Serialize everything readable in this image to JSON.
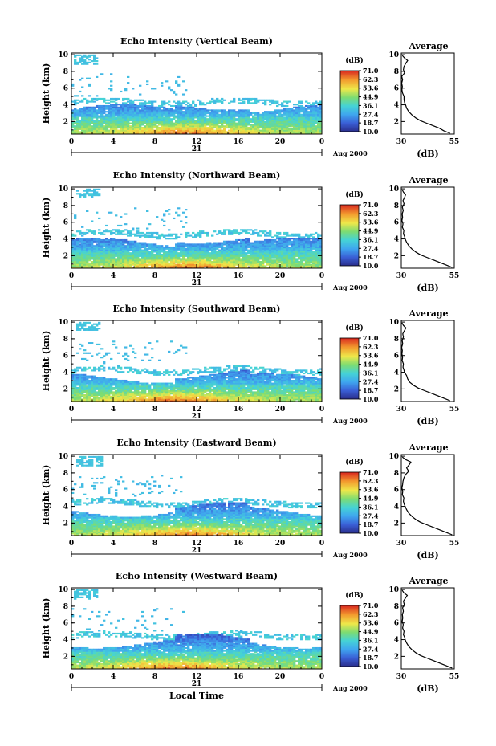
{
  "chart_data": [
    {
      "type": "heatmap",
      "title": "Echo Intensity (Vertical Beam)",
      "ylabel": "Height (km)",
      "x_ticks": [
        "0",
        "4",
        "8",
        "12",
        "16",
        "20",
        "0"
      ],
      "xlim": [
        0,
        24
      ],
      "y_ticks": [
        "2",
        "4",
        "6",
        "8",
        "10"
      ],
      "ylim": [
        0.5,
        10.2
      ],
      "date_day": "21",
      "date_label": "Aug 2000",
      "colorbar": {
        "unit": "(dB)",
        "ticks": [
          "71.0",
          "62.3",
          "53.6",
          "44.9",
          "36.1",
          "27.4",
          "18.7",
          "10.0"
        ]
      },
      "field": {
        "base_top_km": 3.5,
        "upper_band_km": 4.3,
        "peak_hour": 11,
        "upper_cloud": [
          0.3,
          2.5,
          8.8,
          10.0
        ]
      },
      "profile": {
        "title": "Average",
        "xlabel": "(dB)",
        "x_ticks": [
          "30",
          "55"
        ],
        "xlim": [
          30,
          55
        ],
        "y_ticks": [
          "2",
          "4",
          "6",
          "8",
          "10"
        ],
        "ylim": [
          0.5,
          10.2
        ],
        "heights": [
          0.6,
          0.9,
          1.2,
          1.5,
          1.8,
          2.1,
          2.4,
          2.8,
          3.2,
          3.6,
          4.0,
          4.3,
          4.6,
          5.0,
          5.4,
          5.8,
          6.2,
          6.6,
          7.0,
          7.4,
          7.8,
          8.2,
          8.6,
          9.0,
          9.3,
          9.6,
          9.9
        ],
        "values": [
          53,
          50,
          48,
          45,
          42,
          39,
          37,
          35,
          33.5,
          32.5,
          32,
          31.5,
          31.3,
          31.3,
          30.6,
          30.3,
          30.5,
          30.2,
          30.6,
          30.2,
          31.5,
          31,
          31.3,
          32.2,
          33,
          31.5,
          30.5
        ]
      }
    },
    {
      "type": "heatmap",
      "title": "Echo Intensity (Northward Beam)",
      "ylabel": "Height (km)",
      "x_ticks": [
        "0",
        "4",
        "8",
        "12",
        "16",
        "20",
        "0"
      ],
      "xlim": [
        0,
        24
      ],
      "y_ticks": [
        "2",
        "4",
        "6",
        "8",
        "10"
      ],
      "ylim": [
        0.5,
        10.2
      ],
      "date_day": "21",
      "date_label": "Aug 2000",
      "colorbar": {
        "unit": "(dB)",
        "ticks": [
          "71.0",
          "62.3",
          "53.6",
          "44.9",
          "36.1",
          "27.4",
          "18.7",
          "10.0"
        ]
      },
      "field": {
        "base_top_km": 3.6,
        "upper_band_km": 4.6,
        "peak_hour": 11,
        "upper_cloud": [
          0.5,
          2.8,
          9.0,
          10.0
        ]
      },
      "profile": {
        "title": "Average",
        "xlabel": "(dB)",
        "x_ticks": [
          "30",
          "55"
        ],
        "xlim": [
          30,
          55
        ],
        "y_ticks": [
          "2",
          "4",
          "6",
          "8",
          "10"
        ],
        "ylim": [
          0.5,
          10.2
        ],
        "heights": [
          0.6,
          0.9,
          1.2,
          1.5,
          1.8,
          2.1,
          2.4,
          2.8,
          3.2,
          3.6,
          4.0,
          4.3,
          4.6,
          5.0,
          5.4,
          5.8,
          6.2,
          6.6,
          7.0,
          7.4,
          7.8,
          8.2,
          8.6,
          9.0,
          9.3,
          9.6,
          9.9
        ],
        "values": [
          54,
          51,
          48,
          45,
          42,
          39,
          37,
          35,
          33.5,
          32.5,
          31.8,
          31.5,
          31,
          31.2,
          30.5,
          30.8,
          30.3,
          30.6,
          30.4,
          30.9,
          30.5,
          31.3,
          30.8,
          31.6,
          32,
          31,
          30.4
        ]
      }
    },
    {
      "type": "heatmap",
      "title": "Echo Intensity (Southward Beam)",
      "ylabel": "Height (km)",
      "x_ticks": [
        "0",
        "4",
        "8",
        "12",
        "16",
        "20",
        "0"
      ],
      "xlim": [
        0,
        24
      ],
      "y_ticks": [
        "2",
        "4",
        "6",
        "8",
        "10"
      ],
      "ylim": [
        0.5,
        10.2
      ],
      "date_day": "21",
      "date_label": "Aug 2000",
      "colorbar": {
        "unit": "(dB)",
        "ticks": [
          "71.0",
          "62.3",
          "53.6",
          "44.9",
          "36.1",
          "27.4",
          "18.7",
          "10.0"
        ]
      },
      "field": {
        "base_top_km": 3.3,
        "upper_band_km": 4.2,
        "peak_hour": 10,
        "upper_cloud": [
          0.5,
          2.8,
          9.0,
          10.0
        ]
      },
      "profile": {
        "title": "Average",
        "xlabel": "(dB)",
        "x_ticks": [
          "30",
          "55"
        ],
        "xlim": [
          30,
          55
        ],
        "y_ticks": [
          "2",
          "4",
          "6",
          "8",
          "10"
        ],
        "ylim": [
          0.5,
          10.2
        ],
        "heights": [
          0.6,
          0.9,
          1.2,
          1.5,
          1.8,
          2.1,
          2.4,
          2.8,
          3.2,
          3.6,
          4.0,
          4.3,
          4.6,
          5.0,
          5.4,
          5.8,
          6.2,
          6.6,
          7.0,
          7.4,
          7.8,
          8.2,
          8.6,
          9.0,
          9.3,
          9.6,
          9.9
        ],
        "values": [
          53,
          50,
          47,
          44,
          41,
          38,
          36,
          34,
          33,
          32.5,
          31.5,
          31.2,
          30.8,
          31,
          30.4,
          30.6,
          30.3,
          30.5,
          30.2,
          30.7,
          30.4,
          31,
          30.7,
          31.5,
          32.2,
          31,
          30.3
        ]
      }
    },
    {
      "type": "heatmap",
      "title": "Echo Intensity (Eastward Beam)",
      "ylabel": "Height (km)",
      "x_ticks": [
        "0",
        "4",
        "8",
        "12",
        "16",
        "20",
        "0"
      ],
      "xlim": [
        0,
        24
      ],
      "y_ticks": [
        "2",
        "4",
        "6",
        "8",
        "10"
      ],
      "ylim": [
        0.5,
        10.2
      ],
      "date_day": "21",
      "date_label": "Aug 2000",
      "colorbar": {
        "unit": "(dB)",
        "ticks": [
          "71.0",
          "62.3",
          "53.6",
          "44.9",
          "36.1",
          "27.4",
          "18.7",
          "10.0"
        ]
      },
      "field": {
        "base_top_km": 3.4,
        "upper_band_km": 4.4,
        "peak_hour": 11,
        "upper_cloud": [
          0.5,
          3.0,
          8.8,
          10.0
        ]
      },
      "profile": {
        "title": "Average",
        "xlabel": "(dB)",
        "x_ticks": [
          "30",
          "55"
        ],
        "xlim": [
          30,
          55
        ],
        "y_ticks": [
          "2",
          "4",
          "6",
          "8",
          "10"
        ],
        "ylim": [
          0.5,
          10.2
        ],
        "heights": [
          0.6,
          0.9,
          1.2,
          1.5,
          1.8,
          2.1,
          2.4,
          2.8,
          3.2,
          3.6,
          4.0,
          4.3,
          4.6,
          5.0,
          5.4,
          5.8,
          6.2,
          6.6,
          7.0,
          7.4,
          7.8,
          8.2,
          8.6,
          9.0,
          9.3,
          9.6,
          9.9
        ],
        "values": [
          54,
          51,
          48,
          45,
          42,
          39,
          37,
          35,
          33.5,
          32.5,
          31.8,
          31.3,
          31,
          31.2,
          30.5,
          30.7,
          30.3,
          30.6,
          30.8,
          31.2,
          32,
          33.5,
          32.5,
          33.8,
          34.5,
          32,
          30.5
        ]
      }
    },
    {
      "type": "heatmap",
      "title": "Echo Intensity (Westward Beam)",
      "ylabel": "Height (km)",
      "x_ticks": [
        "0",
        "4",
        "8",
        "12",
        "16",
        "20",
        "0"
      ],
      "xlim": [
        0,
        24
      ],
      "y_ticks": [
        "2",
        "4",
        "6",
        "8",
        "10"
      ],
      "ylim": [
        0.5,
        10.2
      ],
      "date_day": "21",
      "date_label": "Aug 2000",
      "xlabel": "Local Time",
      "colorbar": {
        "unit": "(dB)",
        "ticks": [
          "71.0",
          "62.3",
          "53.6",
          "44.9",
          "36.1",
          "27.4",
          "18.7",
          "10.0"
        ]
      },
      "field": {
        "base_top_km": 3.6,
        "upper_band_km": 4.5,
        "peak_hour": 10,
        "upper_cloud": [
          0.3,
          2.5,
          8.8,
          10.0
        ]
      },
      "profile": {
        "title": "Average",
        "xlabel": "(dB)",
        "x_ticks": [
          "30",
          "55"
        ],
        "xlim": [
          30,
          55
        ],
        "y_ticks": [
          "2",
          "4",
          "6",
          "8",
          "10"
        ],
        "ylim": [
          0.5,
          10.2
        ],
        "heights": [
          0.6,
          0.9,
          1.2,
          1.5,
          1.8,
          2.1,
          2.4,
          2.8,
          3.2,
          3.6,
          4.0,
          4.3,
          4.6,
          5.0,
          5.4,
          5.8,
          6.2,
          6.6,
          7.0,
          7.4,
          7.8,
          8.2,
          8.6,
          9.0,
          9.3,
          9.6,
          9.9
        ],
        "values": [
          54,
          51,
          48,
          45,
          42,
          39,
          37,
          35,
          33.5,
          32.5,
          31.8,
          31.5,
          31,
          31.3,
          30.6,
          30.9,
          30.4,
          30.7,
          30.5,
          31,
          30.6,
          31.4,
          31,
          32,
          32.8,
          31.2,
          30.4
        ]
      }
    }
  ]
}
